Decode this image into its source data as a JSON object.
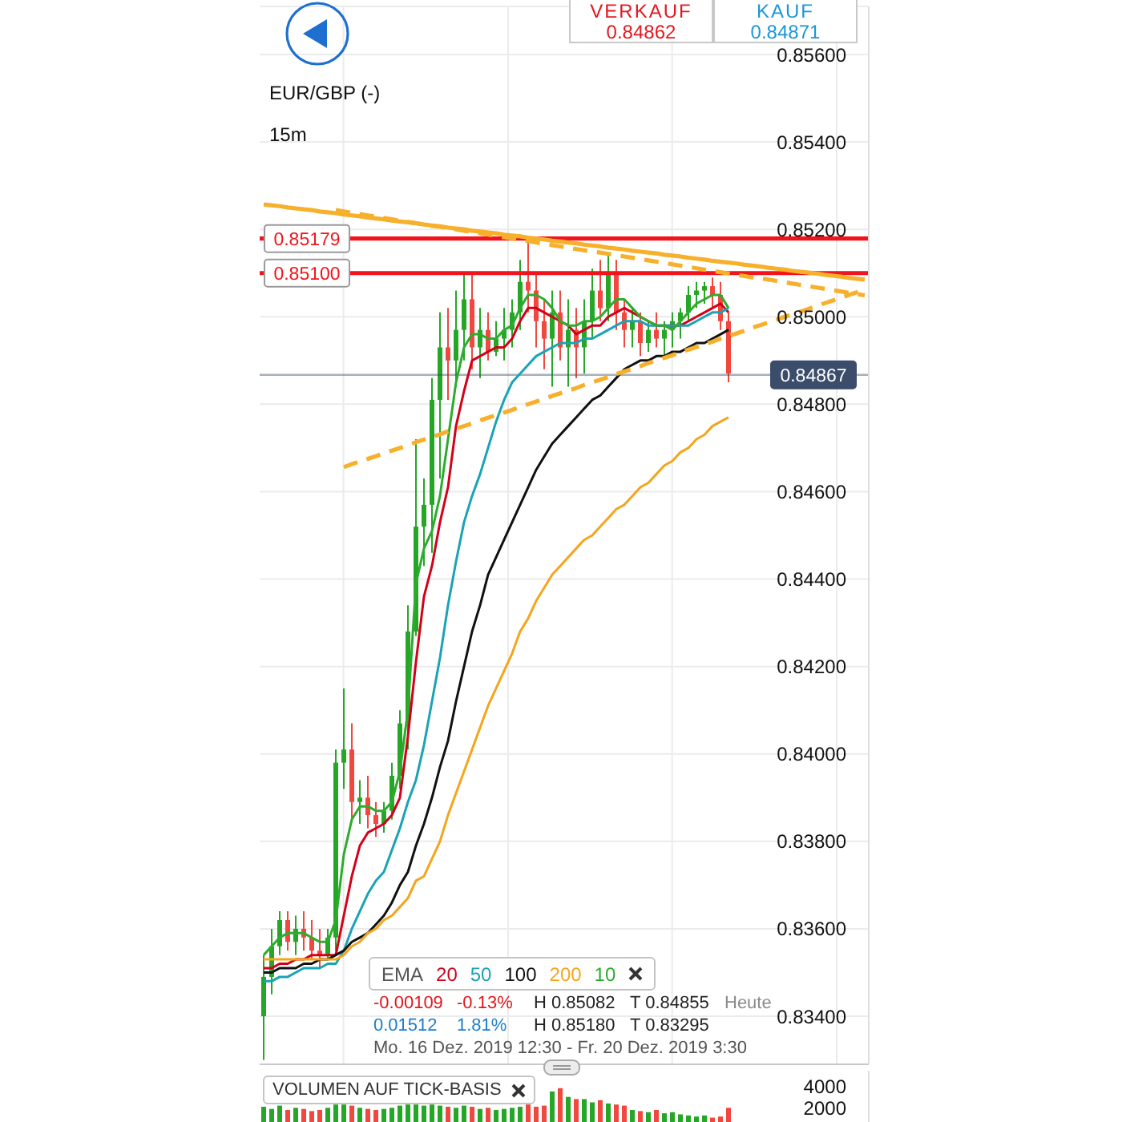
{
  "chart_data": [
    {
      "type": "candlestick",
      "title": "EUR/GBP (-)",
      "subtitle": "15m",
      "categories": [
        null,
        null,
        null,
        null,
        null,
        null,
        null,
        null,
        null,
        null,
        null,
        null,
        null,
        null,
        null,
        null,
        null,
        null,
        null,
        null,
        null,
        null,
        null,
        null,
        null,
        null,
        null,
        null,
        null,
        null,
        null,
        null,
        null,
        null,
        null,
        null,
        null,
        null,
        null,
        null,
        null,
        null,
        null,
        null,
        null,
        null,
        null,
        null,
        null,
        null,
        null,
        null,
        null,
        null,
        null,
        null,
        null,
        null,
        null,
        null,
        null,
        null,
        null,
        null,
        null,
        null,
        null,
        null,
        null,
        null,
        null,
        null,
        null,
        null,
        null,
        null
      ],
      "ohlc": [
        [
          0.834,
          0.8354,
          0.833,
          0.8349
        ],
        [
          0.8349,
          0.836,
          0.8345,
          0.8356
        ],
        [
          0.8356,
          0.8364,
          0.8354,
          0.8362
        ],
        [
          0.8362,
          0.8364,
          0.8355,
          0.8357
        ],
        [
          0.8357,
          0.8363,
          0.8354,
          0.836
        ],
        [
          0.836,
          0.8364,
          0.8355,
          0.8358
        ],
        [
          0.8358,
          0.8362,
          0.8353,
          0.8355
        ],
        [
          0.8355,
          0.836,
          0.8351,
          0.8354
        ],
        [
          0.8354,
          0.836,
          0.8353,
          0.8358
        ],
        [
          0.8358,
          0.8401,
          0.8355,
          0.8398
        ],
        [
          0.8398,
          0.8415,
          0.8392,
          0.8401
        ],
        [
          0.8401,
          0.8407,
          0.8385,
          0.8389
        ],
        [
          0.8389,
          0.8394,
          0.8384,
          0.839
        ],
        [
          0.839,
          0.8395,
          0.8383,
          0.8386
        ],
        [
          0.8386,
          0.8389,
          0.8381,
          0.8384
        ],
        [
          0.8384,
          0.8389,
          0.8382,
          0.8387
        ],
        [
          0.8387,
          0.8398,
          0.8385,
          0.8395
        ],
        [
          0.8395,
          0.841,
          0.8392,
          0.8407
        ],
        [
          0.8407,
          0.8434,
          0.8401,
          0.8428
        ],
        [
          0.8428,
          0.8472,
          0.8427,
          0.8452
        ],
        [
          0.8452,
          0.8463,
          0.8443,
          0.8457
        ],
        [
          0.8457,
          0.8486,
          0.8446,
          0.8481
        ],
        [
          0.8481,
          0.8501,
          0.8463,
          0.8493
        ],
        [
          0.8493,
          0.8502,
          0.8481,
          0.849
        ],
        [
          0.849,
          0.8506,
          0.8484,
          0.8497
        ],
        [
          0.8497,
          0.851,
          0.849,
          0.8504
        ],
        [
          0.8504,
          0.851,
          0.8488,
          0.8493
        ],
        [
          0.8493,
          0.8502,
          0.8486,
          0.8497
        ],
        [
          0.8497,
          0.8501,
          0.849,
          0.8492
        ],
        [
          0.8492,
          0.8499,
          0.8491,
          0.8495
        ],
        [
          0.8495,
          0.8502,
          0.849,
          0.8497
        ],
        [
          0.8497,
          0.8504,
          0.8493,
          0.8501
        ],
        [
          0.8501,
          0.8513,
          0.8497,
          0.8508
        ],
        [
          0.8508,
          0.8518,
          0.8501,
          0.8506
        ],
        [
          0.8506,
          0.851,
          0.8493,
          0.8499
        ],
        [
          0.8499,
          0.8504,
          0.8488,
          0.8495
        ],
        [
          0.8495,
          0.8506,
          0.8484,
          0.8501
        ],
        [
          0.8501,
          0.8506,
          0.849,
          0.8493
        ],
        [
          0.8493,
          0.8504,
          0.8484,
          0.8497
        ],
        [
          0.8497,
          0.8502,
          0.8486,
          0.8493
        ],
        [
          0.8493,
          0.8504,
          0.8487,
          0.8499
        ],
        [
          0.8499,
          0.8511,
          0.8495,
          0.8506
        ],
        [
          0.8506,
          0.8513,
          0.8499,
          0.8502
        ],
        [
          0.8502,
          0.8514,
          0.8499,
          0.851
        ],
        [
          0.851,
          0.8513,
          0.8497,
          0.8501
        ],
        [
          0.8501,
          0.8504,
          0.8493,
          0.8497
        ],
        [
          0.8497,
          0.8502,
          0.8493,
          0.8499
        ],
        [
          0.8499,
          0.8501,
          0.8491,
          0.8494
        ],
        [
          0.8494,
          0.8499,
          0.8492,
          0.8497
        ],
        [
          0.8497,
          0.8501,
          0.8493,
          0.8495
        ],
        [
          0.8495,
          0.8499,
          0.8491,
          0.8497
        ],
        [
          0.8497,
          0.8501,
          0.8493,
          0.8499
        ],
        [
          0.8499,
          0.8502,
          0.8495,
          0.8501
        ],
        [
          0.8501,
          0.8507,
          0.8499,
          0.8505
        ],
        [
          0.8505,
          0.8508,
          0.8502,
          0.8506
        ],
        [
          0.8506,
          0.8508,
          0.8503,
          0.8507
        ],
        [
          0.8507,
          0.8509,
          0.8502,
          0.8505
        ],
        [
          0.8505,
          0.8508,
          0.8497,
          0.8499
        ],
        [
          0.8499,
          0.8501,
          0.8485,
          0.8487
        ],
        null,
        null,
        null,
        null,
        null,
        null,
        null,
        null,
        null,
        null,
        null,
        null,
        null,
        null,
        null,
        null,
        null
      ],
      "colors": [
        "#26a626",
        "#26a626",
        "#26a626",
        "#f0473f",
        "#26a626",
        "#f0473f",
        "#f0473f",
        "#f0473f",
        "#26a626",
        "#26a626",
        "#26a626",
        "#f0473f",
        "#26a626",
        "#f0473f",
        "#f0473f",
        "#26a626",
        "#26a626",
        "#26a626",
        "#26a626",
        "#26a626",
        "#26a626",
        "#26a626",
        "#26a626",
        "#f0473f",
        "#26a626",
        "#26a626",
        "#f0473f",
        "#26a626",
        "#f0473f",
        "#26a626",
        "#26a626",
        "#26a626",
        "#26a626",
        "#f0473f",
        "#f0473f",
        "#f0473f",
        "#26a626",
        "#f0473f",
        "#26a626",
        "#f0473f",
        "#26a626",
        "#26a626",
        "#f0473f",
        "#26a626",
        "#f0473f",
        "#f0473f",
        "#26a626",
        "#f0473f",
        "#26a626",
        "#f0473f",
        "#26a626",
        "#26a626",
        "#26a626",
        "#26a626",
        "#26a626",
        "#26a626",
        "#f0473f",
        "#f0473f",
        "#f0473f",
        null,
        null,
        null,
        null,
        null,
        null,
        null,
        null,
        null,
        null,
        null,
        null,
        null,
        null,
        null,
        null,
        null
      ],
      "series": [
        {
          "name": "20",
          "type": "line",
          "color": "#d4001a",
          "values": [
            0.8351,
            0.8351,
            0.8352,
            0.8352,
            0.8353,
            0.8353,
            0.8354,
            0.8354,
            0.8354,
            0.8354,
            0.8363,
            0.8372,
            0.8379,
            0.8382,
            0.8383,
            0.8384,
            0.8386,
            0.839,
            0.8404,
            0.8421,
            0.8436,
            0.8443,
            0.8453,
            0.8461,
            0.8475,
            0.8483,
            0.849,
            0.8491,
            0.8492,
            0.8493,
            0.8493,
            0.8495,
            0.8499,
            0.8502,
            0.8502,
            0.8501,
            0.85,
            0.8499,
            0.8498,
            0.8496,
            0.8497,
            0.8498,
            0.8498,
            0.85,
            0.8501,
            0.8502,
            0.8501,
            0.85,
            0.8499,
            0.8498,
            0.8498,
            0.8498,
            0.8498,
            0.8499,
            0.85,
            0.8501,
            0.8502,
            0.8503,
            0.8501,
            null,
            null,
            null,
            null,
            null,
            null,
            null,
            null,
            null,
            null,
            null,
            null,
            null,
            null,
            null,
            null,
            null
          ]
        },
        {
          "name": "50",
          "type": "line",
          "color": "#1aa3b5",
          "values": [
            0.8348,
            0.8348,
            0.8349,
            0.8349,
            0.835,
            0.8351,
            0.8351,
            0.8351,
            0.8352,
            0.8352,
            0.8355,
            0.836,
            0.8364,
            0.8368,
            0.8371,
            0.8373,
            0.8378,
            0.8383,
            0.8389,
            0.8394,
            0.8402,
            0.8412,
            0.8422,
            0.8434,
            0.8444,
            0.8453,
            0.8459,
            0.8464,
            0.847,
            0.8476,
            0.8481,
            0.8485,
            0.8487,
            0.8489,
            0.8491,
            0.8492,
            0.8493,
            0.8494,
            0.8494,
            0.8494,
            0.8495,
            0.8495,
            0.8496,
            0.8497,
            0.8498,
            0.8499,
            0.8499,
            0.8499,
            0.8498,
            0.8498,
            0.8498,
            0.8498,
            0.8498,
            0.8498,
            0.8499,
            0.85,
            0.8501,
            0.8501,
            0.8502,
            null,
            null,
            null,
            null,
            null,
            null,
            null,
            null,
            null,
            null,
            null,
            null,
            null,
            null,
            null,
            null,
            null
          ]
        },
        {
          "name": "100",
          "type": "line",
          "color": "#111111",
          "values": [
            0.835,
            0.835,
            0.8351,
            0.8351,
            0.8351,
            0.8352,
            0.8352,
            0.8353,
            0.8353,
            0.8354,
            0.8355,
            0.8357,
            0.8358,
            0.8359,
            0.8361,
            0.8363,
            0.8366,
            0.837,
            0.8373,
            0.8379,
            0.8384,
            0.839,
            0.8397,
            0.8403,
            0.8412,
            0.842,
            0.8428,
            0.8434,
            0.8441,
            0.8445,
            0.8449,
            0.8453,
            0.8457,
            0.8461,
            0.8465,
            0.8468,
            0.8471,
            0.8473,
            0.8475,
            0.8477,
            0.8479,
            0.8481,
            0.8482,
            0.8484,
            0.8486,
            0.8488,
            0.8489,
            0.849,
            0.849,
            0.8491,
            0.8491,
            0.8492,
            0.8492,
            0.8493,
            0.8494,
            0.8494,
            0.8495,
            0.8496,
            0.8497,
            null,
            null,
            null,
            null,
            null,
            null,
            null,
            null,
            null,
            null,
            null,
            null,
            null,
            null,
            null,
            null,
            null
          ]
        },
        {
          "name": "200",
          "type": "line",
          "color": "#f5a51c",
          "values": [
            0.8353,
            0.8353,
            0.8353,
            0.8353,
            0.8353,
            0.8353,
            0.8353,
            0.8353,
            0.8353,
            0.8353,
            0.8354,
            0.8356,
            0.8357,
            0.8359,
            0.836,
            0.8362,
            0.8363,
            0.8365,
            0.8367,
            0.8371,
            0.8372,
            0.8376,
            0.838,
            0.8386,
            0.8391,
            0.8396,
            0.8401,
            0.8406,
            0.8411,
            0.8415,
            0.8419,
            0.8423,
            0.8428,
            0.8431,
            0.8435,
            0.8438,
            0.8441,
            0.8443,
            0.8445,
            0.8447,
            0.8449,
            0.845,
            0.8452,
            0.8454,
            0.8456,
            0.8457,
            0.8459,
            0.8461,
            0.8462,
            0.8464,
            0.8466,
            0.8467,
            0.8469,
            0.847,
            0.8472,
            0.8473,
            0.8475,
            0.8476,
            0.8477,
            null,
            null,
            null,
            null,
            null,
            null,
            null,
            null,
            null,
            null,
            null,
            null,
            null,
            null,
            null,
            null,
            null
          ]
        },
        {
          "name": "10",
          "type": "line",
          "color": "#2eab2e",
          "values": [
            0.8354,
            0.8356,
            0.8358,
            0.8359,
            0.8359,
            0.8359,
            0.8358,
            0.8357,
            0.8357,
            0.8362,
            0.8377,
            0.8385,
            0.8388,
            0.8388,
            0.8387,
            0.8387,
            0.8389,
            0.8396,
            0.841,
            0.8439,
            0.8447,
            0.8451,
            0.8459,
            0.8472,
            0.8485,
            0.8493,
            0.8496,
            0.8496,
            0.8495,
            0.8495,
            0.8497,
            0.8498,
            0.8502,
            0.8505,
            0.8505,
            0.8504,
            0.8502,
            0.8499,
            0.8498,
            0.8498,
            0.8499,
            0.8499,
            0.85,
            0.8502,
            0.8504,
            0.8504,
            0.8502,
            0.85,
            0.8499,
            0.8498,
            0.8498,
            0.8497,
            0.8499,
            0.8501,
            0.8503,
            0.8504,
            0.8505,
            0.8505,
            0.8502,
            null,
            null,
            null,
            null,
            null,
            null,
            null,
            null,
            null,
            null,
            null,
            null,
            null,
            null,
            null,
            null,
            null
          ]
        },
        {
          "type": "line",
          "color": "#f7b02b",
          "line_style": "solid",
          "values": [
            0.85257,
            0.85255,
            0.85253,
            0.8525,
            0.85248,
            0.85246,
            0.85244,
            0.85241,
            0.85239,
            0.85237,
            0.85234,
            0.85232,
            0.8523,
            0.85227,
            0.85225,
            0.85223,
            0.8522,
            0.85218,
            0.85216,
            0.85214,
            0.85211,
            0.85209,
            0.85207,
            0.85204,
            0.85202,
            0.852,
            0.85197,
            0.85195,
            0.85193,
            0.85191,
            0.85188,
            0.85186,
            0.85184,
            0.85181,
            0.85179,
            0.85177,
            0.85174,
            0.85172,
            0.8517,
            0.85168,
            0.85165,
            0.85163,
            0.85161,
            0.85158,
            0.85156,
            0.85154,
            0.85151,
            0.85149,
            0.85147,
            0.85145,
            0.85142,
            0.8514,
            0.85138,
            0.85135,
            0.85133,
            0.85131,
            0.85128,
            0.85126,
            0.85124,
            0.85122,
            0.85119,
            0.85117,
            0.85115,
            0.85112,
            0.8511,
            0.85108,
            0.85105,
            0.85103,
            0.85101,
            0.85099,
            0.85096,
            0.85094,
            0.85092,
            0.85089,
            0.85087,
            0.85085
          ]
        },
        {
          "type": "line",
          "color": "#f7b02b",
          "line_style": "dashed",
          "values": [
            null,
            null,
            null,
            null,
            null,
            null,
            null,
            null,
            null,
            0.85244,
            0.85241,
            0.85238,
            0.85235,
            0.85232,
            0.85229,
            0.85226,
            0.85223,
            0.8522,
            0.85217,
            0.85214,
            0.85211,
            0.85208,
            0.85206,
            0.85203,
            0.852,
            0.85197,
            0.85194,
            0.85191,
            0.85188,
            0.85185,
            0.85182,
            0.85179,
            0.85176,
            0.85173,
            0.8517,
            0.85167,
            0.85164,
            0.85161,
            0.85158,
            0.85155,
            0.85152,
            0.85149,
            0.85147,
            0.85144,
            0.85141,
            0.85138,
            0.85135,
            0.85132,
            0.85129,
            0.85126,
            0.85123,
            0.8512,
            0.85117,
            0.85114,
            0.85111,
            0.85108,
            0.85105,
            0.85102,
            0.85099,
            0.85096,
            0.85093,
            0.8509,
            0.85088,
            0.85085,
            0.85082,
            0.85079,
            0.85076,
            0.85073,
            0.8507,
            0.85067,
            0.85064,
            0.85061,
            0.85058,
            0.85055,
            0.85052,
            0.85049
          ]
        },
        {
          "type": "line",
          "color": "#f7b02b",
          "line_style": "dashed",
          "values": [
            null,
            null,
            null,
            null,
            null,
            null,
            null,
            null,
            null,
            null,
            0.84656,
            0.84663,
            0.84669,
            0.84675,
            0.84681,
            0.84688,
            0.84694,
            0.847,
            0.84706,
            0.84713,
            0.84719,
            0.84725,
            0.84731,
            0.84738,
            0.84744,
            0.8475,
            0.84756,
            0.84763,
            0.84769,
            0.84775,
            0.84781,
            0.84787,
            0.84794,
            0.848,
            0.84806,
            0.84812,
            0.84819,
            0.84825,
            0.84831,
            0.84837,
            0.84844,
            0.8485,
            0.84856,
            0.84862,
            0.84869,
            0.84875,
            0.84881,
            0.84887,
            0.84894,
            0.849,
            0.84906,
            0.84912,
            0.84919,
            0.84925,
            0.84931,
            0.84937,
            0.84943,
            0.8495,
            0.84956,
            0.84962,
            0.84968,
            0.84975,
            0.84981,
            0.84987,
            0.84993,
            0.85,
            0.85006,
            0.85012,
            0.85018,
            0.85025,
            0.85031,
            0.85037,
            0.85043,
            0.8505,
            0.85056,
            0.85062
          ]
        }
      ],
      "ylim": [
        0.8329,
        0.8571
      ],
      "yticks": [
        {
          "value": 0.834,
          "label": "0.83400"
        },
        {
          "value": 0.836,
          "label": "0.83600"
        },
        {
          "value": 0.838,
          "label": "0.83800"
        },
        {
          "value": 0.84,
          "label": "0.84000"
        },
        {
          "value": 0.842,
          "label": "0.84200"
        },
        {
          "value": 0.844,
          "label": "0.84400"
        },
        {
          "value": 0.846,
          "label": "0.84600"
        },
        {
          "value": 0.848,
          "label": "0.84800"
        },
        {
          "value": 0.85,
          "label": "0.85000"
        },
        {
          "value": 0.852,
          "label": "0.85200"
        },
        {
          "value": 0.854,
          "label": "0.85400"
        },
        {
          "value": 0.856,
          "label": "0.85600"
        }
      ],
      "grid": true,
      "legend": "bottom",
      "legend_title": "EMA",
      "ref_lines": [
        {
          "axis": "y",
          "value": 0.85179,
          "label": "0.85179",
          "color": "#f2141c"
        },
        {
          "axis": "y",
          "value": 0.851,
          "label": "0.85100",
          "color": "#f2141c"
        },
        {
          "axis": "y",
          "value": 0.84867,
          "label": "0.84867",
          "color": "#3b4d6b"
        }
      ],
      "annotations": [
        "VERKAUF",
        "0.84862",
        "KAUF",
        "0.84871",
        "-0.00109",
        "-0.13%",
        "H 0.85082",
        "T 0.84855",
        "Heute",
        "0.01512",
        "1.81%",
        "H 0.85180",
        "T 0.83295",
        "Mo. 16 Dez. 2019 12:30 - Fr. 20 Dez. 2019 3:30"
      ]
    },
    {
      "type": "bar",
      "title": "VOLUMEN AUF TICK-BASIS",
      "categories": [
        null,
        null,
        null,
        null,
        null,
        null,
        null,
        null,
        null,
        null,
        null,
        null,
        null,
        null,
        null,
        null,
        null,
        null,
        null,
        null,
        null,
        null,
        null,
        null,
        null,
        null,
        null,
        null,
        null,
        null,
        null,
        null,
        null,
        null,
        null,
        null,
        null,
        null,
        null,
        null,
        null,
        null,
        null,
        null,
        null,
        null,
        null,
        null,
        null,
        null,
        null,
        null,
        null,
        null,
        null,
        null,
        null,
        null,
        null,
        null,
        null,
        null,
        null,
        null,
        null,
        null,
        null,
        null,
        null,
        null,
        null,
        null,
        null,
        null,
        null,
        null
      ],
      "values": [
        2100,
        1900,
        2200,
        1800,
        2000,
        1900,
        1700,
        1800,
        2000,
        2300,
        2300,
        2200,
        2000,
        1900,
        1800,
        1900,
        2000,
        2200,
        2300,
        2300,
        2200,
        2300,
        2200,
        2100,
        2000,
        2200,
        2100,
        1900,
        2000,
        1800,
        1900,
        2000,
        2100,
        2300,
        2100,
        2200,
        3500,
        3800,
        3000,
        2800,
        2800,
        2500,
        2700,
        2400,
        2300,
        2200,
        1800,
        1700,
        1600,
        1800,
        1500,
        1600,
        1400,
        1300,
        1200,
        1300,
        1100,
        1200,
        2000,
        null,
        null,
        null,
        null,
        null,
        null,
        null,
        null,
        null,
        null,
        null,
        null,
        null,
        null,
        null,
        null,
        null
      ],
      "colors": [
        "#26a626",
        "#26a626",
        "#26a626",
        "#f0473f",
        "#26a626",
        "#f0473f",
        "#f0473f",
        "#f0473f",
        "#26a626",
        "#26a626",
        "#26a626",
        "#f0473f",
        "#26a626",
        "#f0473f",
        "#f0473f",
        "#26a626",
        "#26a626",
        "#26a626",
        "#26a626",
        "#26a626",
        "#26a626",
        "#26a626",
        "#26a626",
        "#f0473f",
        "#26a626",
        "#26a626",
        "#f0473f",
        "#26a626",
        "#f0473f",
        "#26a626",
        "#26a626",
        "#26a626",
        "#26a626",
        "#f0473f",
        "#f0473f",
        "#f0473f",
        "#26a626",
        "#f0473f",
        "#26a626",
        "#f0473f",
        "#26a626",
        "#26a626",
        "#f0473f",
        "#26a626",
        "#f0473f",
        "#f0473f",
        "#26a626",
        "#f0473f",
        "#26a626",
        "#f0473f",
        "#26a626",
        "#26a626",
        "#26a626",
        "#26a626",
        "#26a626",
        "#26a626",
        "#f0473f",
        "#f0473f",
        "#f0473f",
        null,
        null,
        null,
        null,
        null,
        null,
        null,
        null,
        null,
        null,
        null,
        null,
        null,
        null,
        null,
        null,
        null
      ],
      "ylim": [
        700,
        5400
      ],
      "yticks": [
        2000,
        4000
      ]
    }
  ]
}
